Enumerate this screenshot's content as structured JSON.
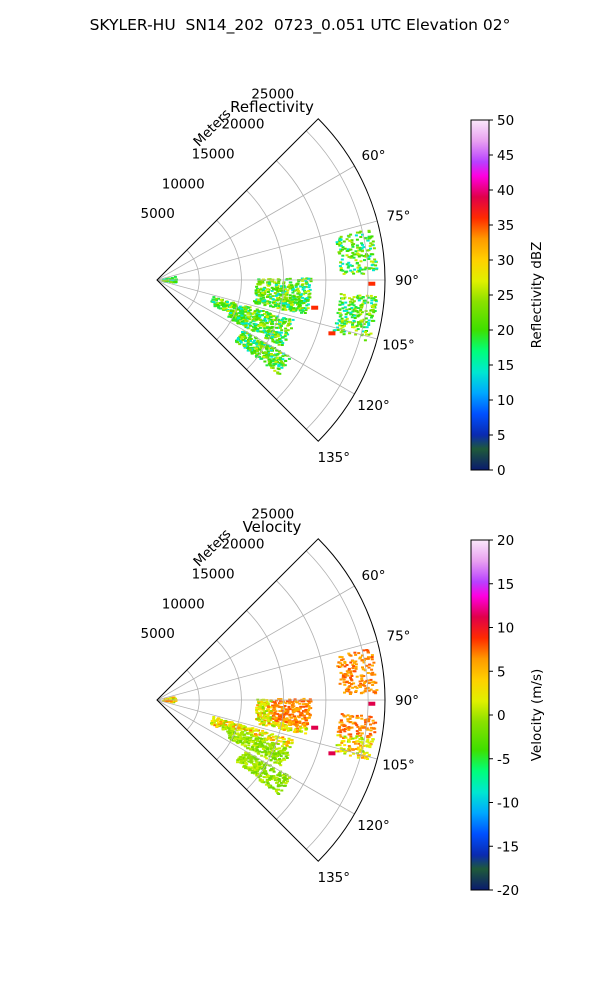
{
  "suptitle": "SKYLER-HU  SN14_202  0723_0.051 UTC Elevation 02°",
  "chart_data": [
    {
      "type": "polar",
      "title": "Reflectivity",
      "radial_label": "Meters",
      "theta_ticks": [
        "60°",
        "75°",
        "90°",
        "105°",
        "120°",
        "135°"
      ],
      "theta_range_deg": [
        45,
        135
      ],
      "r_ticks": [
        "5000",
        "10000",
        "15000",
        "20000",
        "25000"
      ],
      "r_max": 27000,
      "grid": true,
      "colorbar": {
        "label": "Reflectivity dBZ",
        "range": [
          0,
          50
        ],
        "ticks": [
          "0",
          "5",
          "10",
          "15",
          "20",
          "25",
          "30",
          "35",
          "40",
          "45",
          "50"
        ]
      }
    },
    {
      "type": "polar",
      "title": "Velocity",
      "radial_label": "Meters",
      "theta_ticks": [
        "60°",
        "75°",
        "90°",
        "105°",
        "120°",
        "135°"
      ],
      "theta_range_deg": [
        45,
        135
      ],
      "r_ticks": [
        "5000",
        "10000",
        "15000",
        "20000",
        "25000"
      ],
      "r_max": 27000,
      "grid": true,
      "colorbar": {
        "label": "Velocity (m/s)",
        "range": [
          -20,
          20
        ],
        "ticks": [
          "-20",
          "-15",
          "-10",
          "-5",
          "0",
          "5",
          "10",
          "15",
          "20"
        ]
      }
    }
  ]
}
